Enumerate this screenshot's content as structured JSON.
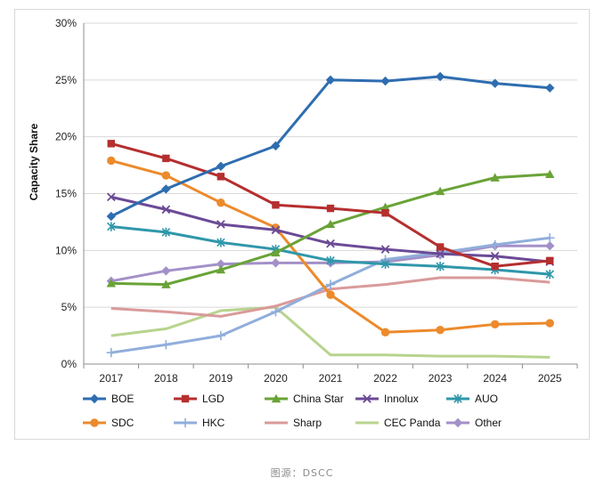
{
  "chart_data": {
    "type": "line",
    "title": "",
    "xlabel": "",
    "ylabel": "Capacity Share",
    "ylim": [
      0,
      30
    ],
    "yticks": [
      "0%",
      "5%",
      "10%",
      "15%",
      "20%",
      "25%",
      "30%"
    ],
    "categories": [
      "2017",
      "2018",
      "2019",
      "2020",
      "2021",
      "2022",
      "2023",
      "2024",
      "2025"
    ],
    "grid": "horizontal",
    "legend_position": "bottom",
    "series": [
      {
        "name": "BOE",
        "color": "#2e6db0",
        "marker": "diamond",
        "values": [
          13.0,
          15.4,
          17.4,
          19.2,
          25.0,
          24.9,
          25.3,
          24.7,
          24.3
        ]
      },
      {
        "name": "LGD",
        "color": "#b52f2f",
        "marker": "square",
        "values": [
          19.4,
          18.1,
          16.5,
          14.0,
          13.7,
          13.3,
          10.3,
          8.6,
          9.1
        ]
      },
      {
        "name": "China Star",
        "color": "#69a337",
        "marker": "triangle",
        "values": [
          7.1,
          7.0,
          8.3,
          9.8,
          12.3,
          13.8,
          15.2,
          16.4,
          16.7
        ]
      },
      {
        "name": "Innolux",
        "color": "#6b4a96",
        "marker": "x",
        "values": [
          14.7,
          13.6,
          12.3,
          11.8,
          10.6,
          10.1,
          9.7,
          9.5,
          9.0
        ]
      },
      {
        "name": "AUO",
        "color": "#2f97aa",
        "marker": "star",
        "values": [
          12.1,
          11.6,
          10.7,
          10.1,
          9.1,
          8.8,
          8.6,
          8.3,
          7.9
        ]
      },
      {
        "name": "SDC",
        "color": "#ec8a2c",
        "marker": "circle",
        "values": [
          17.9,
          16.6,
          14.2,
          12.0,
          6.1,
          2.8,
          3.0,
          3.5,
          3.6
        ]
      },
      {
        "name": "HKC",
        "color": "#90aedb",
        "marker": "plus",
        "values": [
          1.0,
          1.7,
          2.5,
          4.6,
          7.0,
          9.2,
          9.8,
          10.5,
          11.1
        ]
      },
      {
        "name": "Sharp",
        "color": "#da9a9a",
        "marker": "none",
        "values": [
          4.9,
          4.6,
          4.2,
          5.1,
          6.6,
          7.0,
          7.6,
          7.6,
          7.2
        ]
      },
      {
        "name": "CEC Panda",
        "color": "#b7d48e",
        "marker": "none",
        "values": [
          2.5,
          3.1,
          4.7,
          5.0,
          0.8,
          0.8,
          0.7,
          0.7,
          0.6
        ]
      },
      {
        "name": "Other",
        "color": "#a390c8",
        "marker": "diamond",
        "values": [
          7.3,
          8.2,
          8.8,
          8.9,
          8.9,
          9.0,
          9.6,
          10.4,
          10.4
        ]
      }
    ]
  },
  "source_caption": "图源：DSCC"
}
